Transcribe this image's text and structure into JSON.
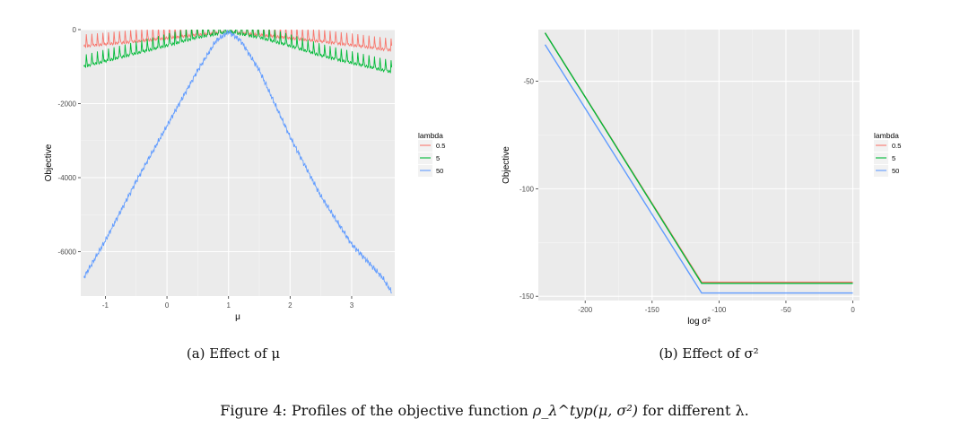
{
  "figure_caption": {
    "label": "Figure 4:",
    "text_before": "Profiles of the objective function",
    "math": "ρ_λ^typ(μ, σ²)",
    "text_after": "for different λ."
  },
  "chart_data": [
    {
      "type": "line",
      "caption": "(a) Effect of μ",
      "xlabel": "μ",
      "ylabel": "Objective",
      "xlim": [
        -1.4,
        3.7
      ],
      "ylim": [
        -7200,
        0
      ],
      "xticks": [
        -1,
        0,
        1,
        2,
        3
      ],
      "yticks": [
        0,
        -2000,
        -4000,
        -6000
      ],
      "grid": true,
      "legend": {
        "title": "lambda",
        "position": "right"
      },
      "series": [
        {
          "name": "0.5",
          "color": "#F8766D",
          "x": [
            -1.35,
            -0.5,
            0.0,
            0.5,
            1.0,
            1.5,
            2.0,
            2.5,
            3.0,
            3.65
          ],
          "y": [
            -450,
            -320,
            -230,
            -140,
            -60,
            -140,
            -230,
            -320,
            -420,
            -560
          ],
          "spikes": true
        },
        {
          "name": "5",
          "color": "#00BA38",
          "x": [
            -1.35,
            -0.5,
            0.0,
            0.5,
            1.0,
            1.5,
            2.0,
            2.5,
            3.0,
            3.65
          ],
          "y": [
            -1000,
            -640,
            -430,
            -210,
            -60,
            -210,
            -440,
            -700,
            -900,
            -1150
          ],
          "spikes": true
        },
        {
          "name": "50",
          "color": "#619CFF",
          "x": [
            -1.35,
            -1.0,
            -0.5,
            0.0,
            0.5,
            0.8,
            1.0,
            1.2,
            1.5,
            2.0,
            2.5,
            3.0,
            3.5,
            3.65
          ],
          "y": [
            -6700,
            -5700,
            -4100,
            -2600,
            -1100,
            -300,
            -60,
            -300,
            -1100,
            -2900,
            -4500,
            -5800,
            -6700,
            -7100
          ],
          "spikes": false
        }
      ]
    },
    {
      "type": "line",
      "caption": "(b) Effect of σ²",
      "xlabel": "log σ²",
      "ylabel": "Objective",
      "xlim": [
        -235,
        5
      ],
      "ylim": [
        -152,
        -26
      ],
      "xticks": [
        -200,
        -150,
        -100,
        -50,
        0
      ],
      "yticks": [
        -50,
        -100,
        -150
      ],
      "grid": true,
      "legend": {
        "title": "lambda",
        "position": "right"
      },
      "series": [
        {
          "name": "0.5",
          "color": "#F8766D",
          "x": [
            -230,
            -113,
            0
          ],
          "y": [
            -27.5,
            -143.5,
            -143.5
          ]
        },
        {
          "name": "5",
          "color": "#00BA38",
          "x": [
            -230,
            -113,
            0
          ],
          "y": [
            -27.5,
            -144,
            -144
          ]
        },
        {
          "name": "50",
          "color": "#619CFF",
          "x": [
            -230,
            -113,
            0
          ],
          "y": [
            -33,
            -148.5,
            -148.5
          ]
        }
      ]
    }
  ]
}
